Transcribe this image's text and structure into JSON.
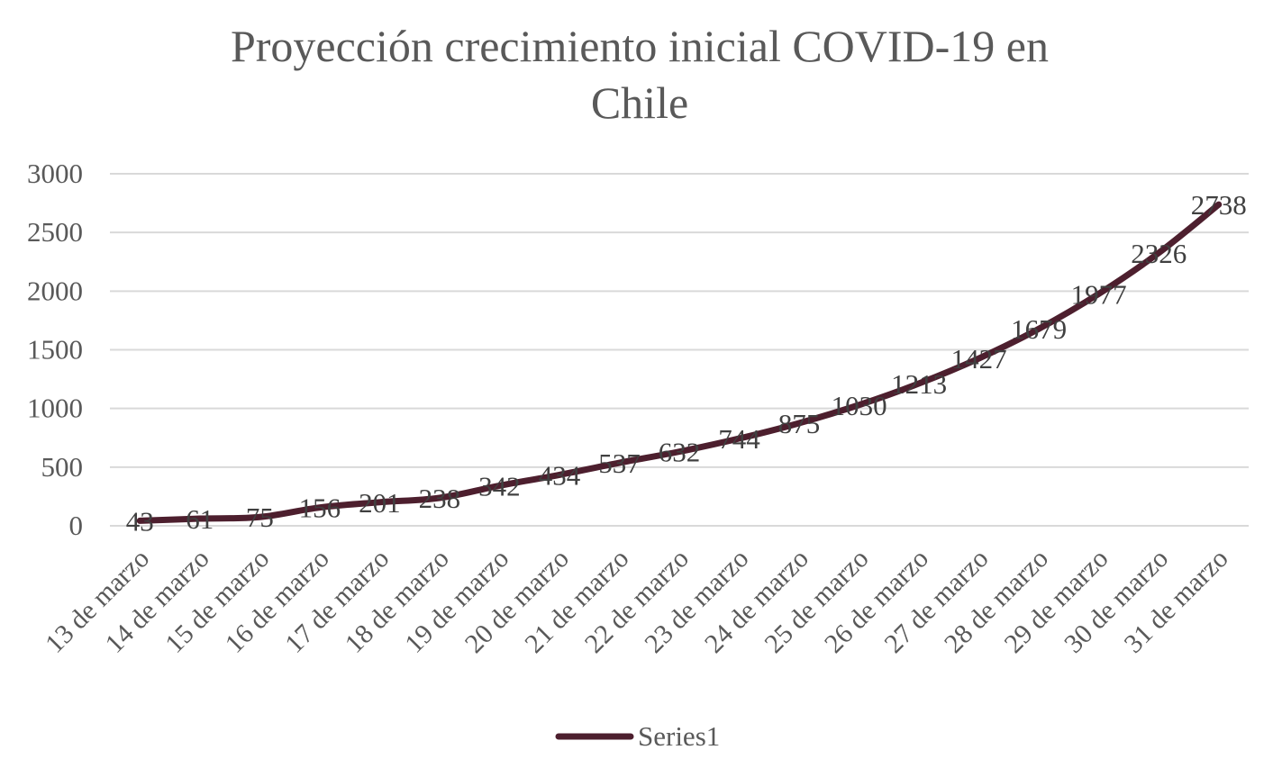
{
  "chart_data": {
    "type": "line",
    "title": "Proyección crecimiento inicial COVID-19 en Chile",
    "title_lines": [
      "Proyección crecimiento inicial COVID-19 en",
      "Chile"
    ],
    "xlabel": "",
    "ylabel": "",
    "categories": [
      "13 de marzo",
      "14 de marzo",
      "15 de marzo",
      "16 de marzo",
      "17 de marzo",
      "18 de marzo",
      "19 de marzo",
      "20 de marzo",
      "21 de marzo",
      "22 de marzo",
      "23 de marzo",
      "24 de marzo",
      "25 de marzo",
      "26 de marzo",
      "27 de marzo",
      "28 de marzo",
      "29 de marzo",
      "30 de marzo",
      "31 de marzo"
    ],
    "series": [
      {
        "name": "Series1",
        "color": "#4d1f2e",
        "values": [
          43,
          61,
          75,
          156,
          201,
          238,
          342,
          434,
          537,
          632,
          744,
          875,
          1030,
          1213,
          1427,
          1679,
          1977,
          2326,
          2738
        ]
      }
    ],
    "ylim": [
      0,
      3000
    ],
    "yticks": [
      "0",
      "500",
      "1000",
      "1500",
      "2000",
      "2500",
      "3000"
    ],
    "grid": true,
    "legend_position": "bottom",
    "data_labels": true,
    "colors": {
      "grid": "#d9d9d9",
      "text": "#595959",
      "label": "#404040"
    }
  }
}
